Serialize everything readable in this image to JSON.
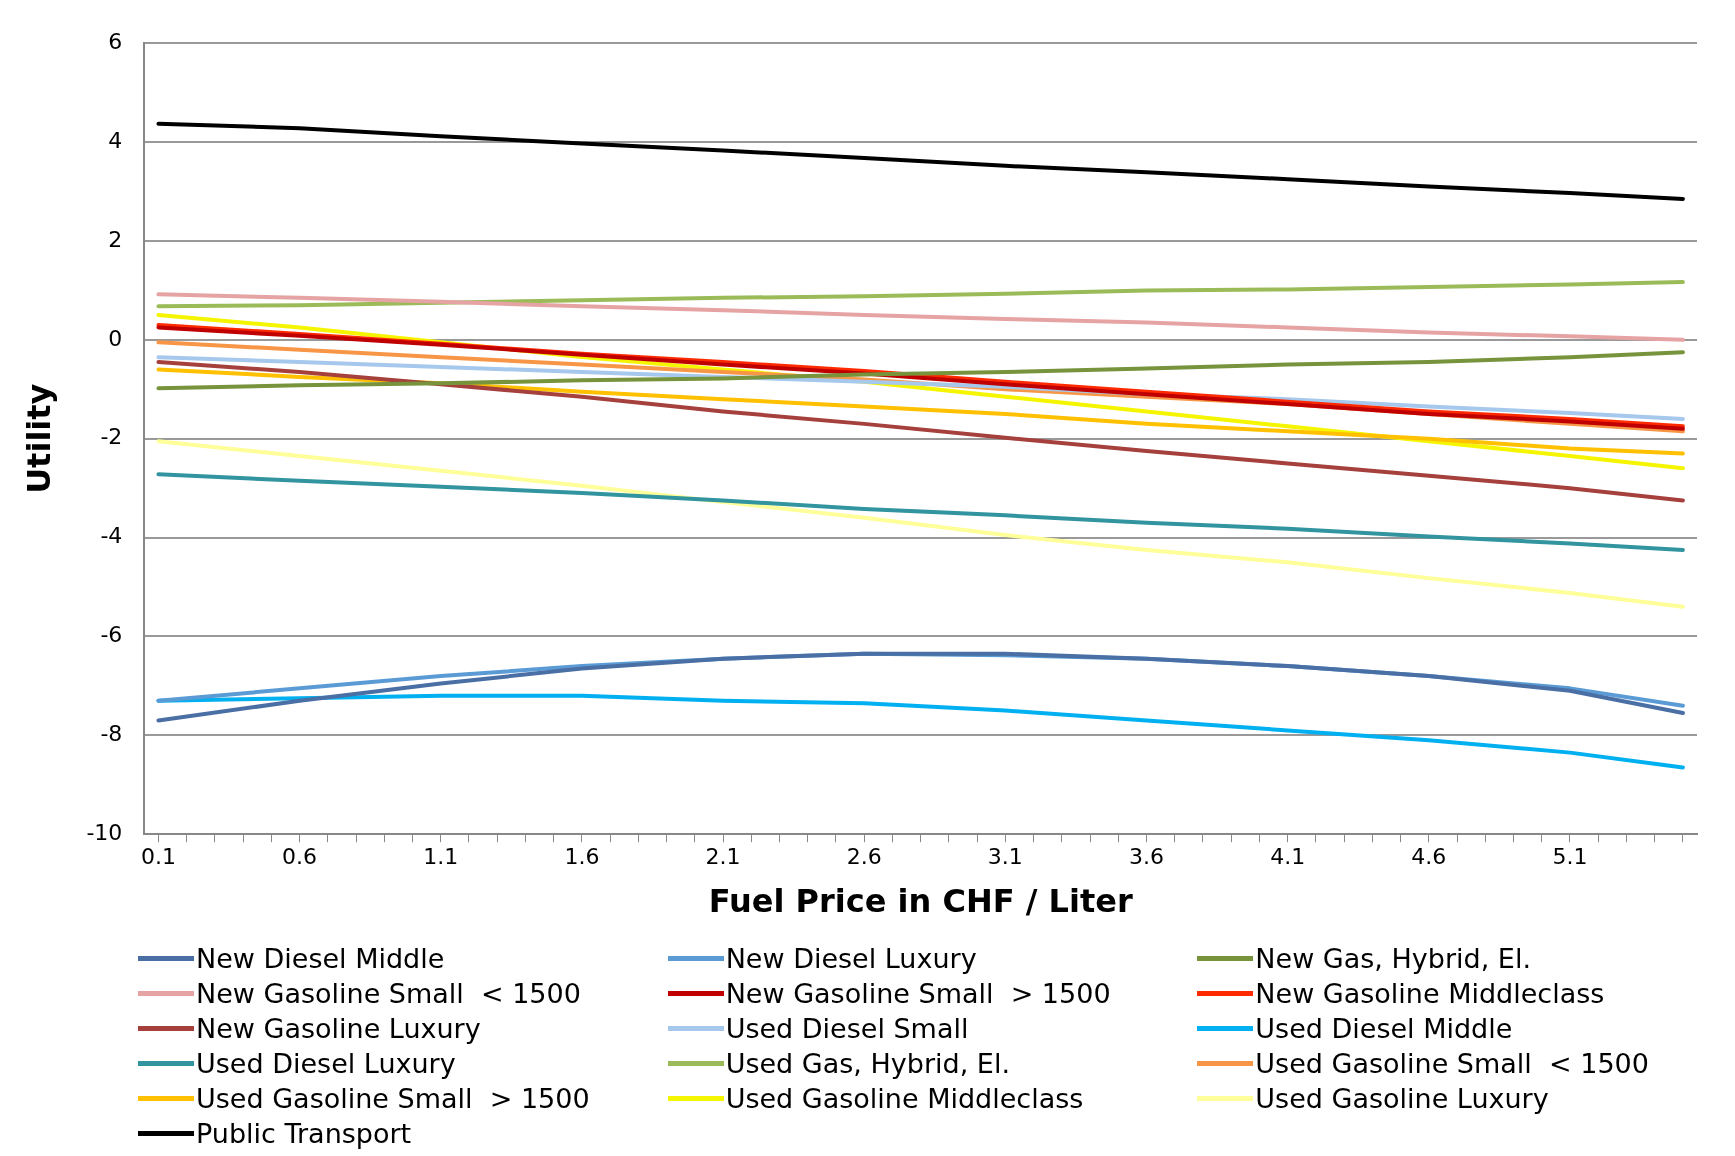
{
  "chart_data": {
    "type": "line",
    "xlabel": "Fuel Price in CHF / Liter",
    "ylabel": "Utility",
    "x": [
      0.1,
      0.6,
      1.1,
      1.6,
      2.1,
      2.6,
      3.1,
      3.6,
      4.1,
      4.6,
      5.1,
      5.5
    ],
    "xlim": [
      0.05,
      5.55
    ],
    "xticks": [
      0.1,
      {
        "value": 0.2,
        "label": null
      },
      {
        "value": 0.3,
        "label": null
      },
      {
        "value": 0.4,
        "label": null
      },
      {
        "value": 0.5,
        "label": null
      },
      0.6,
      {
        "value": 0.7,
        "label": null
      },
      {
        "value": 0.8,
        "label": null
      },
      {
        "value": 0.9,
        "label": null
      },
      {
        "value": 1.0,
        "label": null
      },
      1.1,
      {
        "value": 1.2,
        "label": null
      },
      {
        "value": 1.3,
        "label": null
      },
      {
        "value": 1.4,
        "label": null
      },
      {
        "value": 1.5,
        "label": null
      },
      1.6,
      {
        "value": 1.7,
        "label": null
      },
      {
        "value": 1.8,
        "label": null
      },
      {
        "value": 1.9,
        "label": null
      },
      {
        "value": 2.0,
        "label": null
      },
      2.1,
      {
        "value": 2.2,
        "label": null
      },
      {
        "value": 2.3,
        "label": null
      },
      {
        "value": 2.4,
        "label": null
      },
      {
        "value": 2.5,
        "label": null
      },
      2.6,
      {
        "value": 2.7,
        "label": null
      },
      {
        "value": 2.8,
        "label": null
      },
      {
        "value": 2.9,
        "label": null
      },
      {
        "value": 3.0,
        "label": null
      },
      3.1,
      {
        "value": 3.2,
        "label": null
      },
      {
        "value": 3.3,
        "label": null
      },
      {
        "value": 3.4,
        "label": null
      },
      {
        "value": 3.5,
        "label": null
      },
      3.6,
      {
        "value": 3.7,
        "label": null
      },
      {
        "value": 3.8,
        "label": null
      },
      {
        "value": 3.9,
        "label": null
      },
      {
        "value": 4.0,
        "label": null
      },
      4.1,
      {
        "value": 4.2,
        "label": null
      },
      {
        "value": 4.3,
        "label": null
      },
      {
        "value": 4.4,
        "label": null
      },
      {
        "value": 4.5,
        "label": null
      },
      4.6,
      {
        "value": 4.7,
        "label": null
      },
      {
        "value": 4.8,
        "label": null
      },
      {
        "value": 4.9,
        "label": null
      },
      {
        "value": 5.0,
        "label": null
      },
      5.1,
      {
        "value": 5.2,
        "label": null
      },
      {
        "value": 5.3,
        "label": null
      },
      {
        "value": 5.4,
        "label": null
      },
      {
        "value": 5.5,
        "label": null
      }
    ],
    "ylim": [
      -10,
      6
    ],
    "yticks": [
      -10,
      -8,
      -6,
      -4,
      -2,
      0,
      2,
      4,
      6
    ],
    "grid": "y",
    "legend": "bottom",
    "marker": "none",
    "line_style": "solid",
    "series": [
      {
        "name": "New Diesel Middle",
        "color": "#4a6fa5",
        "values": [
          -7.7,
          -7.3,
          -6.95,
          -6.65,
          -6.45,
          -6.35,
          -6.35,
          -6.45,
          -6.6,
          -6.8,
          -7.1,
          -7.55
        ]
      },
      {
        "name": "New Diesel Luxury",
        "color": "#5b9bd5",
        "values": [
          -7.3,
          -7.05,
          -6.8,
          -6.6,
          -6.45,
          -6.35,
          -6.38,
          -6.45,
          -6.6,
          -6.8,
          -7.05,
          -7.4
        ]
      },
      {
        "name": "New Gas, Hybrid, El.",
        "color": "#77933c",
        "values": [
          -0.98,
          -0.92,
          -0.88,
          -0.82,
          -0.78,
          -0.7,
          -0.65,
          -0.58,
          -0.5,
          -0.45,
          -0.35,
          -0.25
        ]
      },
      {
        "name": "New Gasoline Small  < 1500",
        "color": "#e6a3a3",
        "values": [
          0.92,
          0.85,
          0.77,
          0.68,
          0.6,
          0.5,
          0.42,
          0.35,
          0.25,
          0.15,
          0.07,
          0.0
        ]
      },
      {
        "name": "New Gasoline Small  > 1500",
        "color": "#c00000",
        "values": [
          0.25,
          0.08,
          -0.1,
          -0.3,
          -0.5,
          -0.68,
          -0.9,
          -1.1,
          -1.3,
          -1.5,
          -1.65,
          -1.8
        ]
      },
      {
        "name": "New Gasoline Middleclass",
        "color": "#ff2a00",
        "values": [
          0.3,
          0.12,
          -0.08,
          -0.28,
          -0.45,
          -0.63,
          -0.85,
          -1.05,
          -1.25,
          -1.45,
          -1.6,
          -1.75
        ]
      },
      {
        "name": "New Gasoline Luxury",
        "color": "#a5403c",
        "values": [
          -0.45,
          -0.65,
          -0.9,
          -1.15,
          -1.45,
          -1.7,
          -1.98,
          -2.25,
          -2.5,
          -2.75,
          -3.0,
          -3.25
        ]
      },
      {
        "name": "Used Diesel Small",
        "color": "#a6c8ec",
        "values": [
          -0.35,
          -0.45,
          -0.55,
          -0.65,
          -0.75,
          -0.85,
          -0.95,
          -1.1,
          -1.2,
          -1.35,
          -1.48,
          -1.6
        ]
      },
      {
        "name": "Used Diesel Middle",
        "color": "#00b0f0",
        "values": [
          -7.3,
          -7.25,
          -7.2,
          -7.2,
          -7.3,
          -7.35,
          -7.5,
          -7.7,
          -7.9,
          -8.1,
          -8.35,
          -8.65
        ]
      },
      {
        "name": "Used Diesel Luxury",
        "color": "#31949e",
        "values": [
          -2.72,
          -2.85,
          -2.97,
          -3.1,
          -3.25,
          -3.42,
          -3.55,
          -3.7,
          -3.82,
          -3.98,
          -4.12,
          -4.25
        ]
      },
      {
        "name": "Used Gas, Hybrid, El.",
        "color": "#9bbb59",
        "values": [
          0.68,
          0.7,
          0.75,
          0.8,
          0.85,
          0.88,
          0.93,
          1.0,
          1.02,
          1.07,
          1.12,
          1.17
        ]
      },
      {
        "name": "Used Gasoline Small  < 1500",
        "color": "#f79646",
        "values": [
          -0.05,
          -0.2,
          -0.35,
          -0.5,
          -0.65,
          -0.8,
          -1.0,
          -1.15,
          -1.3,
          -1.5,
          -1.7,
          -1.85
        ]
      },
      {
        "name": "Used Gasoline Small  > 1500",
        "color": "#ffc000",
        "values": [
          -0.6,
          -0.75,
          -0.88,
          -1.05,
          -1.2,
          -1.35,
          -1.5,
          -1.7,
          -1.85,
          -2.0,
          -2.2,
          -2.3
        ]
      },
      {
        "name": "Used Gasoline Middleclass",
        "color": "#f5f500",
        "values": [
          0.5,
          0.25,
          -0.05,
          -0.35,
          -0.6,
          -0.85,
          -1.15,
          -1.45,
          -1.75,
          -2.05,
          -2.35,
          -2.6
        ]
      },
      {
        "name": "Used Gasoline Luxury",
        "color": "#ffff99",
        "values": [
          -2.05,
          -2.35,
          -2.65,
          -2.95,
          -3.28,
          -3.6,
          -3.95,
          -4.25,
          -4.5,
          -4.82,
          -5.12,
          -5.4
        ]
      },
      {
        "name": "Public Transport",
        "color": "#000000",
        "values": [
          4.37,
          4.28,
          4.12,
          3.97,
          3.83,
          3.68,
          3.52,
          3.39,
          3.25,
          3.1,
          2.97,
          2.85
        ]
      }
    ]
  }
}
